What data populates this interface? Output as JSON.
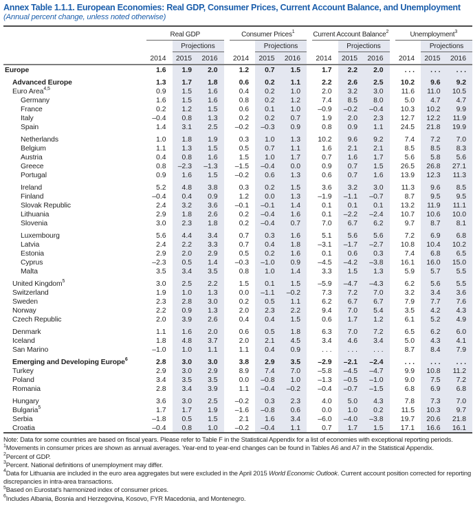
{
  "title": "Annex Table 1.1.1. European Economies: Real GDP, Consumer Prices, Current Account Balance, and Unemployment",
  "subtitle": "(Annual percent change, unless noted otherwise)",
  "colors": {
    "title_blue": "#1b5eab",
    "band": "#e4e7f0",
    "rule_dark": "#4a4a4a",
    "rule_mid": "#7d7d7d",
    "text": "#1f1f1f"
  },
  "table": {
    "groups": [
      {
        "label": "Real GDP",
        "sup": ""
      },
      {
        "label": "Consumer Prices",
        "sup": "1"
      },
      {
        "label": "Current Account Balance",
        "sup": "2"
      },
      {
        "label": "Unemployment",
        "sup": "3"
      }
    ],
    "projections_label": "Projections",
    "years": [
      "2014",
      "2015",
      "2016"
    ],
    "rows": [
      {
        "label": "Europe",
        "sup": "",
        "indent": 0,
        "bold": true,
        "gap": false,
        "values": [
          "1.6",
          "1.9",
          "2.0",
          "1.2",
          "0.7",
          "1.5",
          "1.7",
          "2.2",
          "2.0",
          ". . .",
          ". . .",
          ". . ."
        ]
      },
      {
        "label": "Advanced Europe",
        "sup": "",
        "indent": 1,
        "bold": true,
        "gap": true,
        "values": [
          "1.3",
          "1.7",
          "1.8",
          "0.6",
          "0.2",
          "1.1",
          "2.2",
          "2.6",
          "2.5",
          "10.2",
          "9.6",
          "9.2"
        ]
      },
      {
        "label": "Euro Area",
        "sup": "4,5",
        "indent": 1,
        "bold": false,
        "gap": false,
        "values": [
          "0.9",
          "1.5",
          "1.6",
          "0.4",
          "0.2",
          "1.0",
          "2.0",
          "3.2",
          "3.0",
          "11.6",
          "11.0",
          "10.5"
        ]
      },
      {
        "label": "Germany",
        "sup": "",
        "indent": 2,
        "bold": false,
        "gap": false,
        "values": [
          "1.6",
          "1.5",
          "1.6",
          "0.8",
          "0.2",
          "1.2",
          "7.4",
          "8.5",
          "8.0",
          "5.0",
          "4.7",
          "4.7"
        ]
      },
      {
        "label": "France",
        "sup": "",
        "indent": 2,
        "bold": false,
        "gap": false,
        "values": [
          "0.2",
          "1.2",
          "1.5",
          "0.6",
          "0.1",
          "1.0",
          "–0.9",
          "–0.2",
          "–0.4",
          "10.3",
          "10.2",
          "9.9"
        ]
      },
      {
        "label": "Italy",
        "sup": "",
        "indent": 2,
        "bold": false,
        "gap": false,
        "values": [
          "–0.4",
          "0.8",
          "1.3",
          "0.2",
          "0.2",
          "0.7",
          "1.9",
          "2.0",
          "2.3",
          "12.7",
          "12.2",
          "11.9"
        ]
      },
      {
        "label": "Spain",
        "sup": "",
        "indent": 2,
        "bold": false,
        "gap": false,
        "values": [
          "1.4",
          "3.1",
          "2.5",
          "–0.2",
          "–0.3",
          "0.9",
          "0.8",
          "0.9",
          "1.1",
          "24.5",
          "21.8",
          "19.9"
        ]
      },
      {
        "label": "Netherlands",
        "sup": "",
        "indent": 2,
        "bold": false,
        "gap": true,
        "values": [
          "1.0",
          "1.8",
          "1.9",
          "0.3",
          "1.0",
          "1.3",
          "10.2",
          "9.6",
          "9.2",
          "7.4",
          "7.2",
          "7.0"
        ]
      },
      {
        "label": "Belgium",
        "sup": "",
        "indent": 2,
        "bold": false,
        "gap": false,
        "values": [
          "1.1",
          "1.3",
          "1.5",
          "0.5",
          "0.7",
          "1.1",
          "1.6",
          "2.1",
          "2.1",
          "8.5",
          "8.5",
          "8.3"
        ]
      },
      {
        "label": "Austria",
        "sup": "",
        "indent": 2,
        "bold": false,
        "gap": false,
        "values": [
          "0.4",
          "0.8",
          "1.6",
          "1.5",
          "1.0",
          "1.7",
          "0.7",
          "1.6",
          "1.7",
          "5.6",
          "5.8",
          "5.6"
        ]
      },
      {
        "label": "Greece",
        "sup": "",
        "indent": 2,
        "bold": false,
        "gap": false,
        "values": [
          "0.8",
          "–2.3",
          "–1.3",
          "–1.5",
          "–0.4",
          "0.0",
          "0.9",
          "0.7",
          "1.5",
          "26.5",
          "26.8",
          "27.1"
        ]
      },
      {
        "label": "Portugal",
        "sup": "",
        "indent": 2,
        "bold": false,
        "gap": false,
        "values": [
          "0.9",
          "1.6",
          "1.5",
          "–0.2",
          "0.6",
          "1.3",
          "0.6",
          "0.7",
          "1.6",
          "13.9",
          "12.3",
          "11.3"
        ]
      },
      {
        "label": "Ireland",
        "sup": "",
        "indent": 2,
        "bold": false,
        "gap": true,
        "values": [
          "5.2",
          "4.8",
          "3.8",
          "0.3",
          "0.2",
          "1.5",
          "3.6",
          "3.2",
          "3.0",
          "11.3",
          "9.6",
          "8.5"
        ]
      },
      {
        "label": "Finland",
        "sup": "",
        "indent": 2,
        "bold": false,
        "gap": false,
        "values": [
          "–0.4",
          "0.4",
          "0.9",
          "1.2",
          "0.0",
          "1.3",
          "–1.9",
          "–1.1",
          "–0.7",
          "8.7",
          "9.5",
          "9.5"
        ]
      },
      {
        "label": "Slovak Republic",
        "sup": "",
        "indent": 2,
        "bold": false,
        "gap": false,
        "values": [
          "2.4",
          "3.2",
          "3.6",
          "–0.1",
          "–0.1",
          "1.4",
          "0.1",
          "0.1",
          "0.1",
          "13.2",
          "11.9",
          "11.1"
        ]
      },
      {
        "label": "Lithuania",
        "sup": "",
        "indent": 2,
        "bold": false,
        "gap": false,
        "values": [
          "2.9",
          "1.8",
          "2.6",
          "0.2",
          "–0.4",
          "1.6",
          "0.1",
          "–2.2",
          "–2.4",
          "10.7",
          "10.6",
          "10.0"
        ]
      },
      {
        "label": "Slovenia",
        "sup": "",
        "indent": 2,
        "bold": false,
        "gap": false,
        "values": [
          "3.0",
          "2.3",
          "1.8",
          "0.2",
          "–0.4",
          "0.7",
          "7.0",
          "6.7",
          "6.2",
          "9.7",
          "8.7",
          "8.1"
        ]
      },
      {
        "label": "Luxembourg",
        "sup": "",
        "indent": 2,
        "bold": false,
        "gap": true,
        "values": [
          "5.6",
          "4.4",
          "3.4",
          "0.7",
          "0.3",
          "1.6",
          "5.1",
          "5.6",
          "5.6",
          "7.2",
          "6.9",
          "6.8"
        ]
      },
      {
        "label": "Latvia",
        "sup": "",
        "indent": 2,
        "bold": false,
        "gap": false,
        "values": [
          "2.4",
          "2.2",
          "3.3",
          "0.7",
          "0.4",
          "1.8",
          "–3.1",
          "–1.7",
          "–2.7",
          "10.8",
          "10.4",
          "10.2"
        ]
      },
      {
        "label": "Estonia",
        "sup": "",
        "indent": 2,
        "bold": false,
        "gap": false,
        "values": [
          "2.9",
          "2.0",
          "2.9",
          "0.5",
          "0.2",
          "1.6",
          "0.1",
          "0.6",
          "0.3",
          "7.4",
          "6.8",
          "6.5"
        ]
      },
      {
        "label": "Cyprus",
        "sup": "",
        "indent": 2,
        "bold": false,
        "gap": false,
        "values": [
          "–2.3",
          "0.5",
          "1.4",
          "–0.3",
          "–1.0",
          "0.9",
          "–4.5",
          "–4.2",
          "–3.8",
          "16.1",
          "16.0",
          "15.0"
        ]
      },
      {
        "label": "Malta",
        "sup": "",
        "indent": 2,
        "bold": false,
        "gap": false,
        "values": [
          "3.5",
          "3.4",
          "3.5",
          "0.8",
          "1.0",
          "1.4",
          "3.3",
          "1.5",
          "1.3",
          "5.9",
          "5.7",
          "5.5"
        ]
      },
      {
        "label": "United Kingdom",
        "sup": "5",
        "indent": 1,
        "bold": false,
        "gap": true,
        "values": [
          "3.0",
          "2.5",
          "2.2",
          "1.5",
          "0.1",
          "1.5",
          "–5.9",
          "–4.7",
          "–4.3",
          "6.2",
          "5.6",
          "5.5"
        ]
      },
      {
        "label": "Switzerland",
        "sup": "",
        "indent": 1,
        "bold": false,
        "gap": false,
        "values": [
          "1.9",
          "1.0",
          "1.3",
          "0.0",
          "–1.1",
          "–0.2",
          "7.3",
          "7.2",
          "7.0",
          "3.2",
          "3.4",
          "3.6"
        ]
      },
      {
        "label": "Sweden",
        "sup": "",
        "indent": 1,
        "bold": false,
        "gap": false,
        "values": [
          "2.3",
          "2.8",
          "3.0",
          "0.2",
          "0.5",
          "1.1",
          "6.2",
          "6.7",
          "6.7",
          "7.9",
          "7.7",
          "7.6"
        ]
      },
      {
        "label": "Norway",
        "sup": "",
        "indent": 1,
        "bold": false,
        "gap": false,
        "values": [
          "2.2",
          "0.9",
          "1.3",
          "2.0",
          "2.3",
          "2.2",
          "9.4",
          "7.0",
          "5.4",
          "3.5",
          "4.2",
          "4.3"
        ]
      },
      {
        "label": "Czech Republic",
        "sup": "",
        "indent": 1,
        "bold": false,
        "gap": false,
        "values": [
          "2.0",
          "3.9",
          "2.6",
          "0.4",
          "0.4",
          "1.5",
          "0.6",
          "1.7",
          "1.2",
          "6.1",
          "5.2",
          "4.9"
        ]
      },
      {
        "label": "Denmark",
        "sup": "",
        "indent": 1,
        "bold": false,
        "gap": true,
        "values": [
          "1.1",
          "1.6",
          "2.0",
          "0.6",
          "0.5",
          "1.8",
          "6.3",
          "7.0",
          "7.2",
          "6.5",
          "6.2",
          "6.0"
        ]
      },
      {
        "label": "Iceland",
        "sup": "",
        "indent": 1,
        "bold": false,
        "gap": false,
        "values": [
          "1.8",
          "4.8",
          "3.7",
          "2.0",
          "2.1",
          "4.5",
          "3.4",
          "4.6",
          "3.4",
          "5.0",
          "4.3",
          "4.1"
        ]
      },
      {
        "label": "San Marino",
        "sup": "",
        "indent": 1,
        "bold": false,
        "gap": false,
        "values": [
          "–1.0",
          "1.0",
          "1.1",
          "1.1",
          "0.4",
          "0.9",
          ". . .",
          ". . .",
          ". . .",
          "8.7",
          "8.4",
          "7.9"
        ]
      },
      {
        "label": "Emerging and Developing Europe",
        "sup": "6",
        "indent": 1,
        "bold": true,
        "gap": true,
        "values": [
          "2.8",
          "3.0",
          "3.0",
          "3.8",
          "2.9",
          "3.5",
          "–2.9",
          "–2.1",
          "–2.4",
          ". . .",
          ". . .",
          ". . ."
        ]
      },
      {
        "label": "Turkey",
        "sup": "",
        "indent": 1,
        "bold": false,
        "gap": false,
        "values": [
          "2.9",
          "3.0",
          "2.9",
          "8.9",
          "7.4",
          "7.0",
          "–5.8",
          "–4.5",
          "–4.7",
          "9.9",
          "10.8",
          "11.2"
        ]
      },
      {
        "label": "Poland",
        "sup": "",
        "indent": 1,
        "bold": false,
        "gap": false,
        "values": [
          "3.4",
          "3.5",
          "3.5",
          "0.0",
          "–0.8",
          "1.0",
          "–1.3",
          "–0.5",
          "–1.0",
          "9.0",
          "7.5",
          "7.2"
        ]
      },
      {
        "label": "Romania",
        "sup": "",
        "indent": 1,
        "bold": false,
        "gap": false,
        "values": [
          "2.8",
          "3.4",
          "3.9",
          "1.1",
          "–0.4",
          "–0.2",
          "–0.4",
          "–0.7",
          "–1.5",
          "6.8",
          "6.9",
          "6.8"
        ]
      },
      {
        "label": "Hungary",
        "sup": "",
        "indent": 1,
        "bold": false,
        "gap": true,
        "values": [
          "3.6",
          "3.0",
          "2.5",
          "–0.2",
          "0.3",
          "2.3",
          "4.0",
          "5.0",
          "4.3",
          "7.8",
          "7.3",
          "7.0"
        ]
      },
      {
        "label": "Bulgaria",
        "sup": "5",
        "indent": 1,
        "bold": false,
        "gap": false,
        "values": [
          "1.7",
          "1.7",
          "1.9",
          "–1.6",
          "–0.8",
          "0.6",
          "0.0",
          "1.0",
          "0.2",
          "11.5",
          "10.3",
          "9.7"
        ]
      },
      {
        "label": "Serbia",
        "sup": "",
        "indent": 1,
        "bold": false,
        "gap": false,
        "values": [
          "–1.8",
          "0.5",
          "1.5",
          "2.1",
          "1.6",
          "3.4",
          "–6.0",
          "–4.0",
          "–3.8",
          "19.7",
          "20.6",
          "21.8"
        ]
      },
      {
        "label": "Croatia",
        "sup": "",
        "indent": 1,
        "bold": false,
        "gap": false,
        "values": [
          "–0.4",
          "0.8",
          "1.0",
          "–0.2",
          "–0.4",
          "1.1",
          "0.7",
          "1.7",
          "1.5",
          "17.1",
          "16.6",
          "16.1"
        ]
      }
    ]
  },
  "footnotes": [
    {
      "sup": "",
      "before": "Note: Data for some countries are based on fiscal years. Please refer to Table F in the Statistical Appendix for a list of economies with exceptional reporting periods.",
      "italic": "",
      "after": ""
    },
    {
      "sup": "1",
      "before": "Movements in consumer prices are shown as annual averages. Year-end to year-end changes can be found in Tables A6 and A7 in the Statistical Appendix.",
      "italic": "",
      "after": ""
    },
    {
      "sup": "2",
      "before": "Percent of GDP.",
      "italic": "",
      "after": ""
    },
    {
      "sup": "3",
      "before": "Percent. National definitions of unemployment may differ.",
      "italic": "",
      "after": ""
    },
    {
      "sup": "4",
      "before": "Data for Lithuania are included in the euro area aggregates but were excluded in the April 2015 ",
      "italic": "World Economic Outlook",
      "after": ". Current account position corrected for reporting discrepancies in intra-area transactions."
    },
    {
      "sup": "5",
      "before": "Based on Eurostat's harmonized index of consumer prices.",
      "italic": "",
      "after": ""
    },
    {
      "sup": "6",
      "before": "Includes Albania, Bosnia and Herzegovina, Kosovo, FYR Macedonia, and Montenegro.",
      "italic": "",
      "after": ""
    }
  ]
}
